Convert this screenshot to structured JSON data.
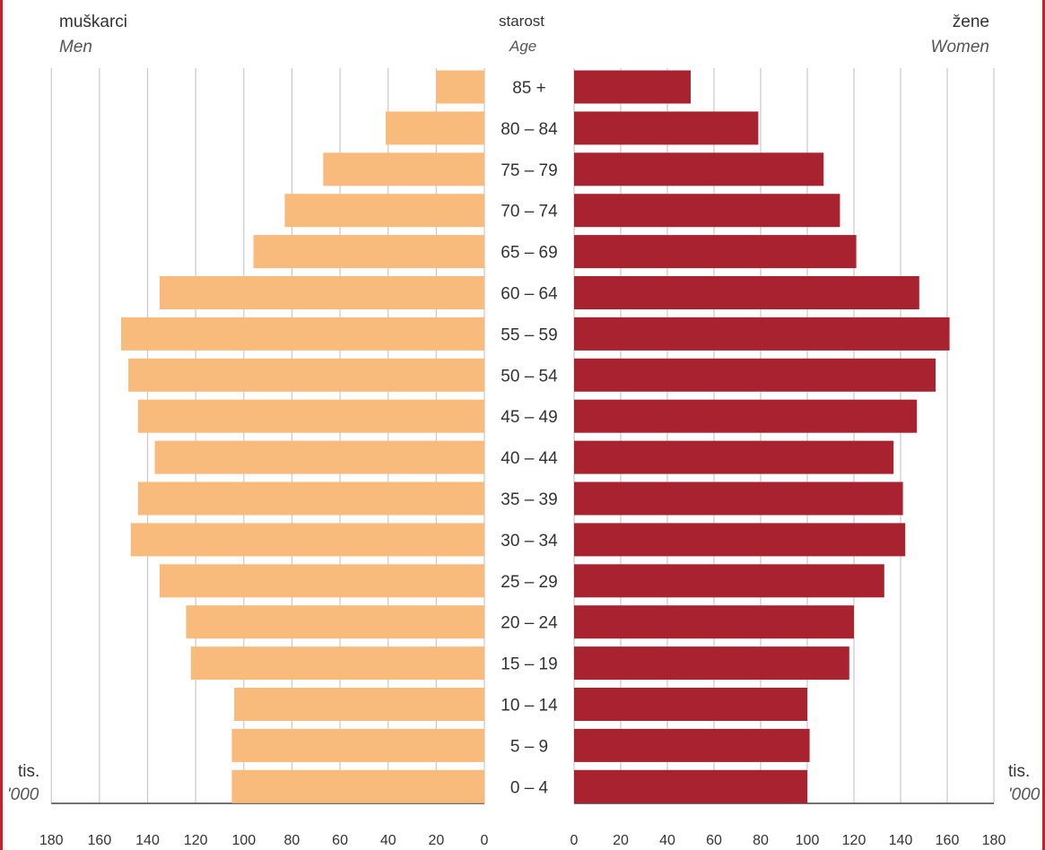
{
  "header": {
    "men_label": "muškarci",
    "men_label_en": "Men",
    "age_label": "starost",
    "age_label_en": "Age",
    "women_label": "žene",
    "women_label_en": "Women",
    "unit_left": "tis.",
    "unit_left_en": "'000",
    "unit_right": "tis.",
    "unit_right_en": "'000"
  },
  "colors": {
    "men": "#f9bb7b",
    "women": "#a8232f",
    "grid": "#c9c9c9"
  },
  "chart_data": {
    "type": "bar",
    "orientation": "horizontal-pyramid",
    "categories": [
      "85 +",
      "80 – 84",
      "75 – 79",
      "70 – 74",
      "65 – 69",
      "60 – 64",
      "55 – 59",
      "50 – 54",
      "45 – 49",
      "40 – 44",
      "35 – 39",
      "30 – 34",
      "25 – 29",
      "20 – 24",
      "15 – 19",
      "10 – 14",
      "5 – 9",
      "0 – 4"
    ],
    "series": [
      {
        "name": "Men",
        "values": [
          20,
          41,
          67,
          83,
          96,
          135,
          151,
          148,
          144,
          137,
          144,
          147,
          135,
          124,
          122,
          104,
          105,
          105
        ]
      },
      {
        "name": "Women",
        "values": [
          50,
          79,
          107,
          114,
          121,
          148,
          161,
          155,
          147,
          137,
          141,
          142,
          133,
          120,
          118,
          100,
          101,
          100
        ]
      }
    ],
    "xlim": [
      0,
      180
    ],
    "x_ticks": [
      0,
      20,
      40,
      60,
      80,
      100,
      120,
      140,
      160,
      180
    ],
    "x_tick_labels_left": [
      "180",
      "160",
      "140",
      "120",
      "100",
      "80",
      "60",
      "40",
      "20",
      "0"
    ],
    "x_tick_labels_right": [
      "0",
      "20",
      "40",
      "60",
      "80",
      "100",
      "120",
      "140",
      "160",
      "180"
    ],
    "grid": true
  }
}
